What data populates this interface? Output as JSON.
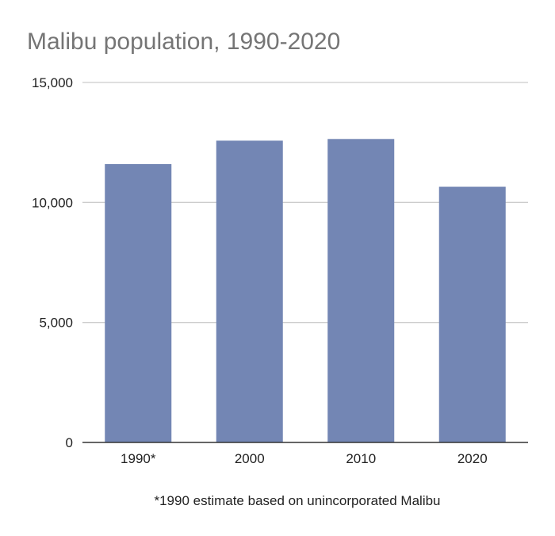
{
  "chart_data": {
    "type": "bar",
    "title": "Malibu population, 1990-2020",
    "categories": [
      "1990*",
      "2000",
      "2010",
      "2020"
    ],
    "series": [
      {
        "values": [
          11600,
          12575,
          12645,
          10654
        ]
      }
    ],
    "ylim": [
      0,
      15000
    ],
    "yticks": [
      0,
      5000,
      10000,
      15000
    ],
    "ytick_labels": [
      "0",
      "5,000",
      "10,000",
      "15,000"
    ],
    "xlabel": "",
    "ylabel": "",
    "grid": true,
    "legend": "none",
    "footnote": "*1990 estimate based on unincorporated Malibu",
    "colors": {
      "bar": "#7386b4",
      "grid": "#cccccc",
      "axis": "#333333",
      "title": "#757575",
      "text": "#222222"
    }
  }
}
